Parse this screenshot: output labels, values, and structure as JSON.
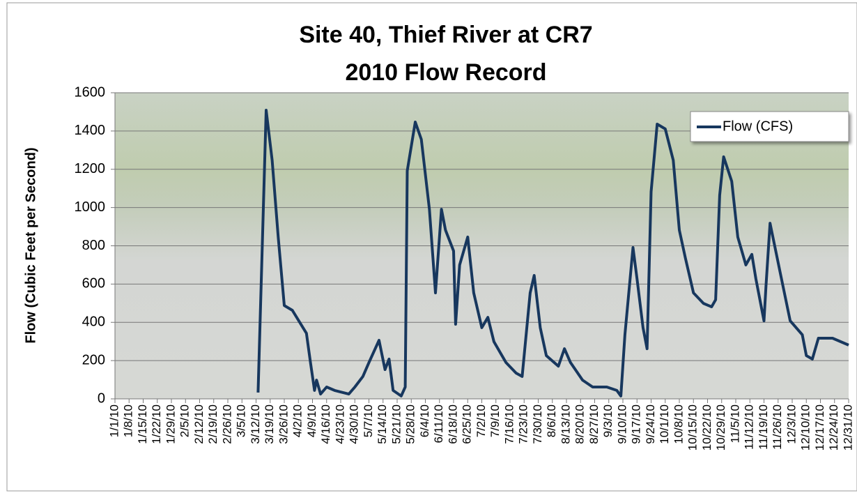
{
  "chart_data": {
    "type": "line",
    "title": [
      "Site 40, Thief River at CR7",
      "2010 Flow Record"
    ],
    "y_label": "Flow (Cubic Feet per Second)",
    "x": [
      "3/13/10",
      "3/17/10",
      "3/20/10",
      "3/23/10",
      "3/26/10",
      "3/30/10",
      "4/6/10",
      "4/8/10",
      "4/10/10",
      "4/11/10",
      "4/13/10",
      "4/16/10",
      "4/20/10",
      "4/27/10",
      "4/30/10",
      "5/4/10",
      "5/7/10",
      "5/12/10",
      "5/15/10",
      "5/17/10",
      "5/19/10",
      "5/23/10",
      "5/25/10",
      "5/26/10",
      "5/30/10",
      "6/2/10",
      "6/6/10",
      "6/9/10",
      "6/12/10",
      "6/14/10",
      "6/18/10",
      "6/19/10",
      "6/21/10",
      "6/25/10",
      "6/28/10",
      "7/2/10",
      "7/5/10",
      "7/8/10",
      "7/14/10",
      "7/19/10",
      "7/22/10",
      "7/26/10",
      "7/28/10",
      "7/31/10",
      "8/3/10",
      "8/9/10",
      "8/12/10",
      "8/15/10",
      "8/21/10",
      "8/26/10",
      "9/2/10",
      "9/7/10",
      "9/9/10",
      "9/11/10",
      "9/15/10",
      "9/17/10",
      "9/20/10",
      "9/22/10",
      "9/24/10",
      "9/27/10",
      "10/1/10",
      "10/5/10",
      "10/8/10",
      "10/11/10",
      "10/15/10",
      "10/20/10",
      "10/24/10",
      "10/26/10",
      "10/28/10",
      "10/30/10",
      "11/3/10",
      "11/6/10",
      "11/10/10",
      "11/13/10",
      "11/15/10",
      "11/19/10",
      "11/20/10",
      "11/22/10",
      "11/27/10",
      "12/2/10",
      "12/8/10",
      "12/10/10",
      "12/13/10",
      "12/16/10",
      "12/23/10",
      "12/31/10"
    ],
    "series": [
      {
        "name": "Flow (CFS)",
        "color": "#17375e",
        "values": [
          33,
          1509,
          1247,
          846,
          488,
          463,
          343,
          190,
          44,
          98,
          25,
          62,
          44,
          25,
          62,
          117,
          190,
          306,
          153,
          208,
          44,
          15,
          62,
          1192,
          1447,
          1356,
          991,
          554,
          991,
          882,
          773,
          390,
          700,
          846,
          554,
          372,
          426,
          299,
          190,
          135,
          117,
          554,
          645,
          372,
          226,
          171,
          262,
          190,
          98,
          62,
          62,
          44,
          15,
          335,
          791,
          627,
          372,
          262,
          1083,
          1436,
          1411,
          1247,
          882,
          736,
          554,
          499,
          481,
          518,
          1064,
          1265,
          1137,
          846,
          700,
          755,
          627,
          408,
          591,
          918,
          663,
          408,
          335,
          226,
          208,
          317,
          317,
          281
        ]
      }
    ],
    "xlim": [
      "1/1/10",
      "12/31/10"
    ],
    "xticks": [
      "1/1/10",
      "1/8/10",
      "1/15/10",
      "1/22/10",
      "1/29/10",
      "2/5/10",
      "2/12/10",
      "2/19/10",
      "2/26/10",
      "3/5/10",
      "3/12/10",
      "3/19/10",
      "3/26/10",
      "4/2/10",
      "4/9/10",
      "4/16/10",
      "4/23/10",
      "4/30/10",
      "5/7/10",
      "5/14/10",
      "5/21/10",
      "5/28/10",
      "6/4/10",
      "6/11/10",
      "6/18/10",
      "6/25/10",
      "7/2/10",
      "7/9/10",
      "7/16/10",
      "7/23/10",
      "7/30/10",
      "8/6/10",
      "8/13/10",
      "8/20/10",
      "8/27/10",
      "9/3/10",
      "9/10/10",
      "9/17/10",
      "9/24/10",
      "10/1/10",
      "10/8/10",
      "10/15/10",
      "10/22/10",
      "10/29/10",
      "11/5/10",
      "11/12/10",
      "11/19/10",
      "11/26/10",
      "12/3/10",
      "12/10/10",
      "12/17/10",
      "12/24/10",
      "12/31/10"
    ],
    "ylim": [
      0,
      1600
    ],
    "yticks": [
      0,
      200,
      400,
      600,
      800,
      1000,
      1200,
      1400,
      1600
    ],
    "grid": true,
    "legend": "top-right"
  }
}
